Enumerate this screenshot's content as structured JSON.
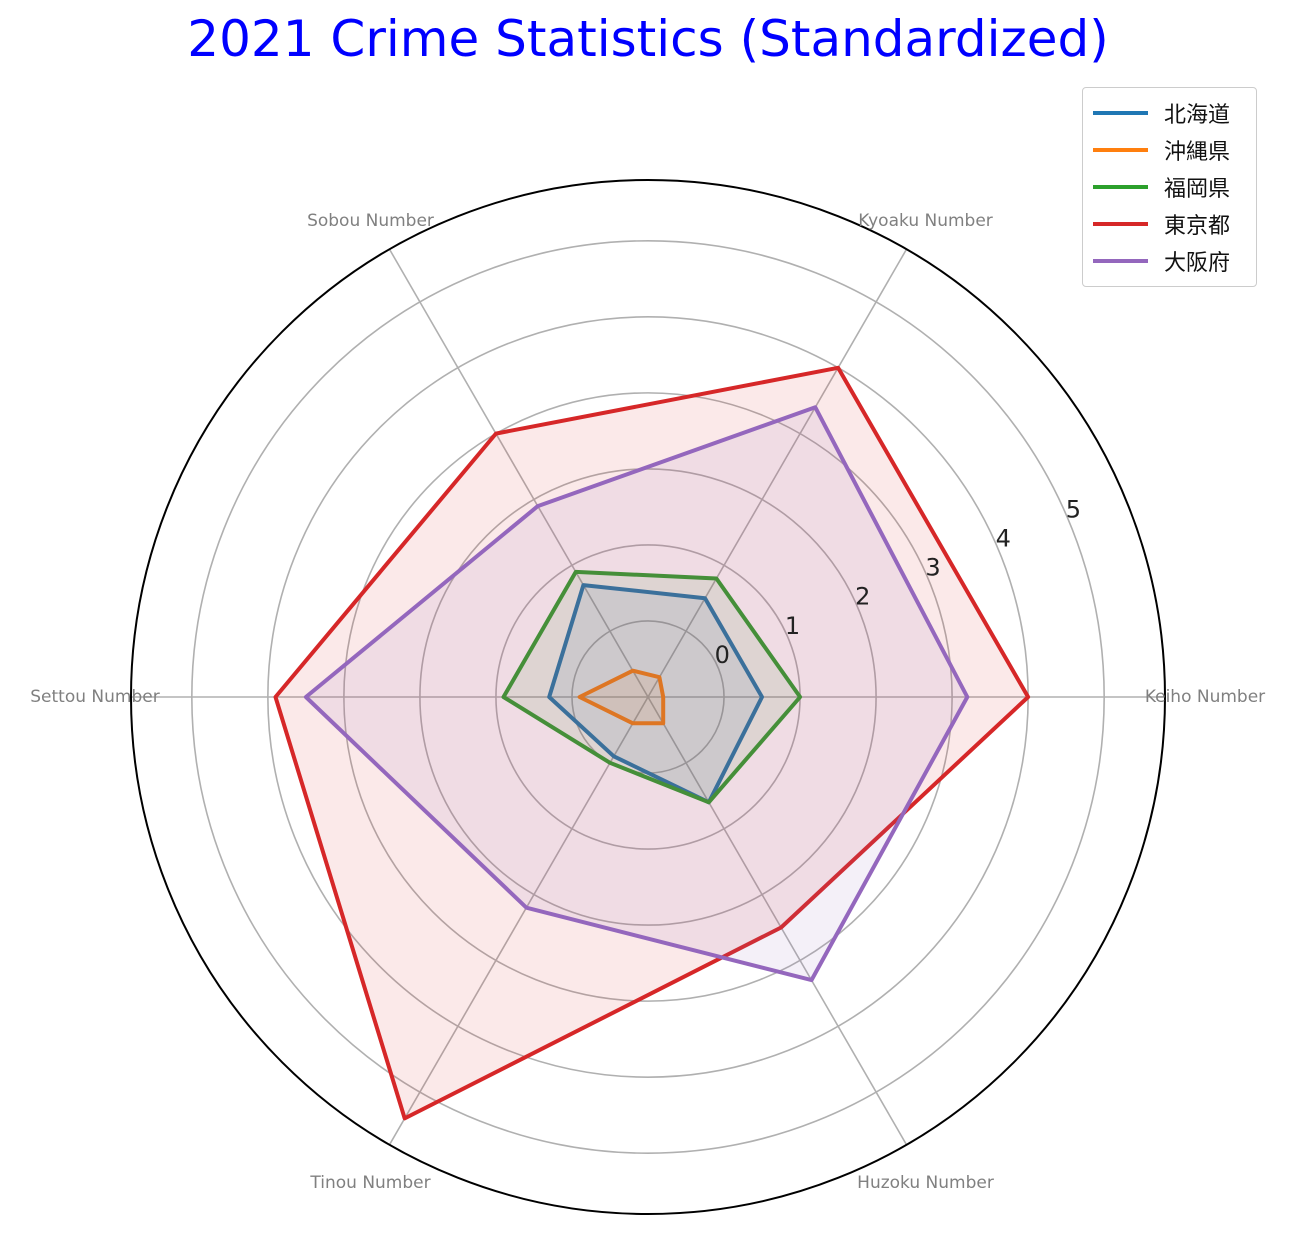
{
  "chart_data": {
    "type": "radar",
    "title": "2021 Crime Statistics (Standardized)",
    "axes": [
      "Keiho Number",
      "Kyoaku Number",
      "Sobou Number",
      "Settou Number",
      "Tinou Number",
      "Huzoku Number"
    ],
    "radial_ticks": [
      "0",
      "1",
      "2",
      "3",
      "4",
      "5"
    ],
    "rlim": [
      -1,
      5.8
    ],
    "grid": true,
    "legend_position": "top-right",
    "series": [
      {
        "name": "北海道",
        "color": "#1f77b4",
        "values": [
          0.5,
          0.5,
          0.7,
          0.3,
          -0.1,
          0.6
        ]
      },
      {
        "name": "沖縄県",
        "color": "#ff7f0e",
        "values": [
          -0.8,
          -0.7,
          -0.6,
          -0.1,
          -0.6,
          -0.6
        ]
      },
      {
        "name": "福岡県",
        "color": "#2ca02c",
        "values": [
          1.0,
          0.8,
          0.9,
          0.9,
          0.0,
          0.6
        ]
      },
      {
        "name": "東京都",
        "color": "#d62728",
        "values": [
          4.0,
          4.0,
          3.0,
          3.9,
          5.4,
          2.5
        ]
      },
      {
        "name": "大阪府",
        "color": "#9467bd",
        "values": [
          3.2,
          3.4,
          1.9,
          3.5,
          2.2,
          3.3
        ]
      }
    ]
  }
}
